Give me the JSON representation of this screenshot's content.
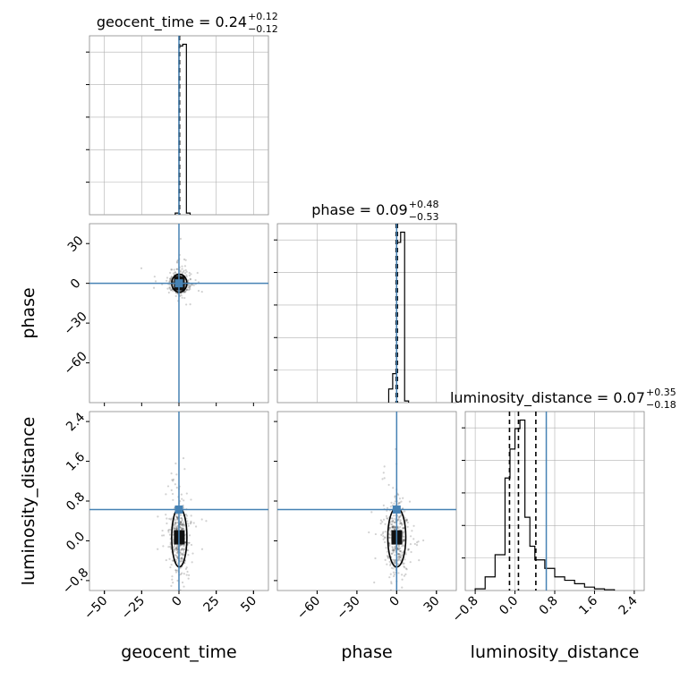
{
  "chart_data": {
    "type": "corner",
    "parameters": [
      "geocent_time",
      "phase",
      "luminosity_distance"
    ],
    "truth_color": "#4682b4",
    "truths": {
      "geocent_time": 0.0,
      "phase": 0.0,
      "luminosity_distance": 0.63
    },
    "marginal_titles": [
      {
        "param": "geocent_time",
        "text": "geocent_time = 0.24",
        "sup": "+0.12",
        "sub": "−0.12"
      },
      {
        "param": "phase",
        "text": "phase = 0.09",
        "sup": "+0.48",
        "sub": "−0.53"
      },
      {
        "param": "luminosity_distance",
        "text": "luminosity_distance = 0.07",
        "sup": "+0.35",
        "sub": "−0.18"
      }
    ],
    "axes": {
      "geocent_time": {
        "lim": [
          -60,
          60
        ],
        "ticks": [
          -50,
          -25,
          0,
          25,
          50
        ],
        "tick_labels": [
          "−50",
          "−25",
          "0",
          "25",
          "50"
        ]
      },
      "phase": {
        "lim": [
          -90,
          45
        ],
        "ticks": [
          -60,
          -30,
          0,
          30
        ],
        "tick_labels": [
          "−60",
          "−30",
          "0",
          "30"
        ]
      },
      "luminosity_distance": {
        "lim": [
          -1.0,
          2.6
        ],
        "ticks": [
          -0.8,
          0.0,
          0.8,
          1.6,
          2.4
        ],
        "tick_labels": [
          "−0.8",
          "0.0",
          "0.8",
          "1.6",
          "2.4"
        ]
      }
    },
    "histograms": {
      "geocent_time": {
        "edges": [
          -2.5,
          0,
          2.5,
          5,
          7.5
        ],
        "counts": [
          0.01,
          0.99,
          1.0,
          0.01
        ],
        "quantiles": [
          0.12,
          0.24,
          0.36
        ]
      },
      "phase": {
        "edges": [
          -6,
          -3,
          0,
          3,
          6,
          9
        ],
        "counts": [
          0.08,
          0.17,
          0.94,
          1.0,
          0.01
        ],
        "quantiles": [
          -0.44,
          0.09,
          0.57
        ]
      },
      "luminosity_distance": {
        "edges": [
          -0.8,
          -0.6,
          -0.4,
          -0.2,
          -0.1,
          0.0,
          0.1,
          0.2,
          0.3,
          0.4,
          0.6,
          0.8,
          1.0,
          1.2,
          1.4,
          1.6,
          1.8,
          2.0
        ],
        "counts": [
          0.01,
          0.08,
          0.21,
          0.66,
          0.83,
          0.95,
          1.0,
          0.43,
          0.26,
          0.18,
          0.13,
          0.08,
          0.06,
          0.04,
          0.02,
          0.01,
          0.005
        ],
        "quantiles": [
          -0.11,
          0.07,
          0.42
        ]
      }
    },
    "scatter_spread": {
      "geocent_time": 3.0,
      "phase": 4.0,
      "luminosity_distance": 0.35
    }
  }
}
